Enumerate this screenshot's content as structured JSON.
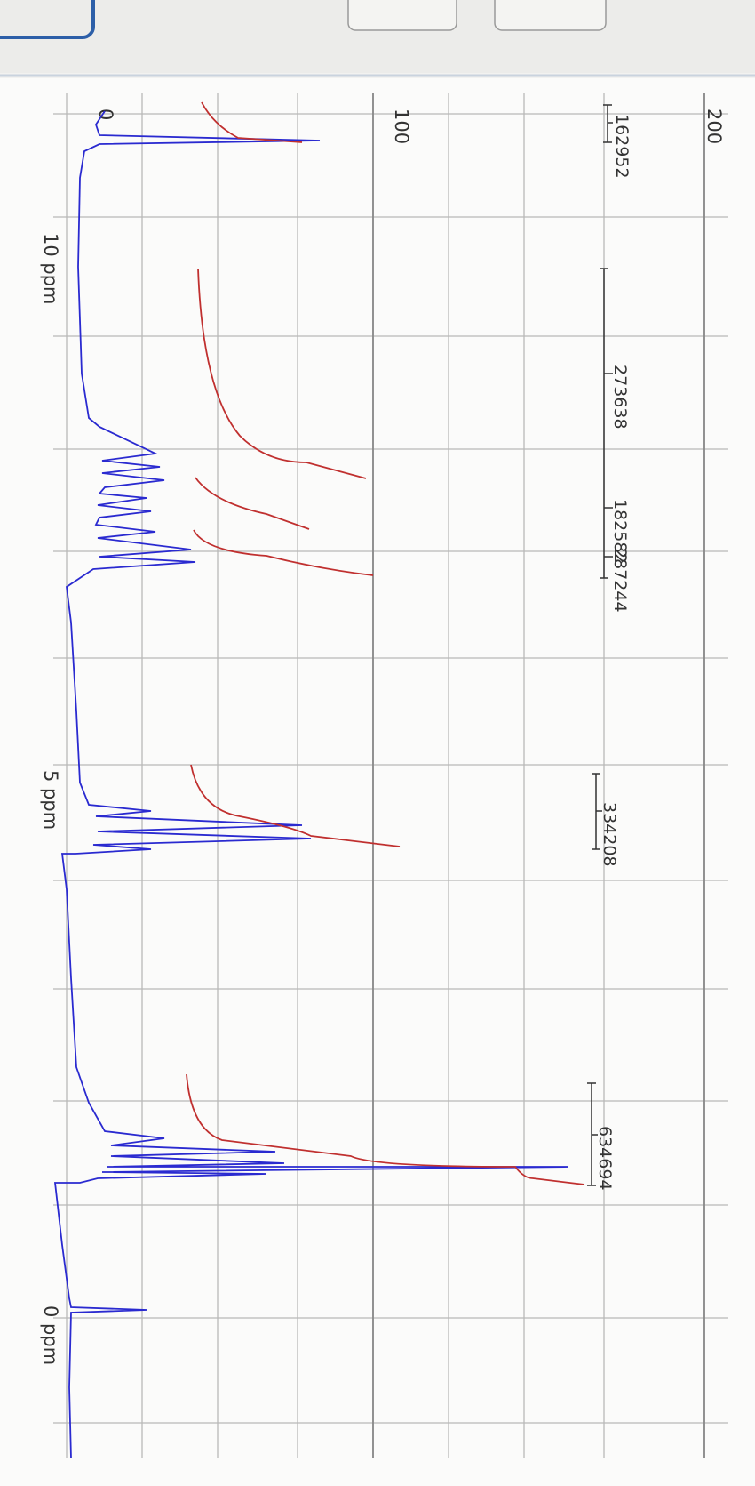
{
  "spectrum": {
    "intensity_labels": [
      "0",
      "100",
      "200"
    ],
    "ppm_labels": [
      "10 ppm",
      "5 ppm",
      "0 ppm"
    ],
    "integrals": [
      "162952",
      "273638",
      "182582",
      "287244",
      "334208",
      "634694"
    ]
  }
}
